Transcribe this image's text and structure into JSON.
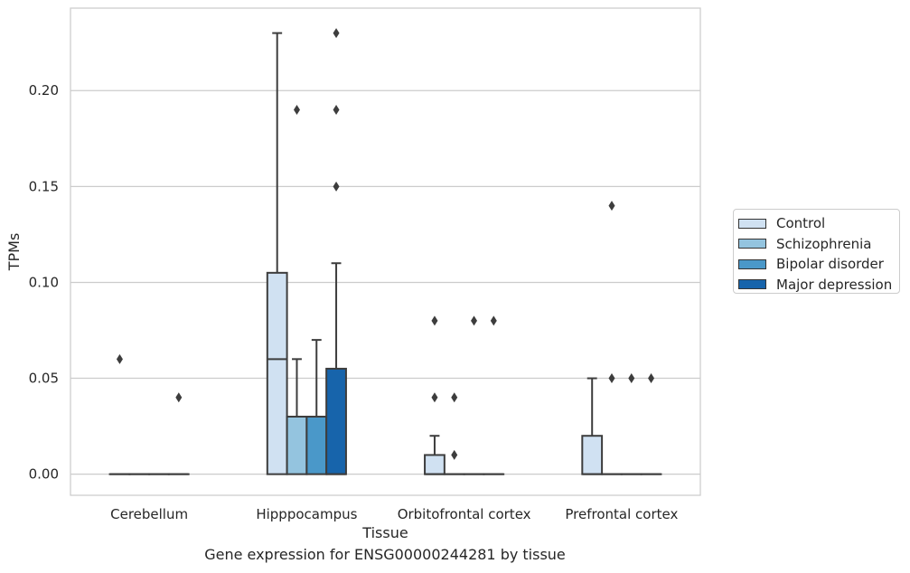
{
  "chart_data": {
    "type": "box",
    "title": "Gene expression for ENSG00000244281 by tissue",
    "xlabel": "Tissue",
    "ylabel": "TPMs",
    "categories": [
      "Cerebellum",
      "Hipppocampus",
      "Orbitofrontal cortex",
      "Prefrontal cortex"
    ],
    "ylim": [
      -0.011,
      0.243
    ],
    "yticks": [
      "0.00",
      "0.05",
      "0.10",
      "0.15",
      "0.20"
    ],
    "grid": "horizontal",
    "legend_position": "right",
    "series": [
      {
        "name": "Control",
        "color": "#d0e1f2",
        "boxes": [
          {
            "min": 0,
            "q1": 0,
            "median": 0,
            "q3": 0,
            "max": 0,
            "outliers": [
              0.06
            ]
          },
          {
            "min": 0,
            "q1": 0,
            "median": 0.06,
            "q3": 0.105,
            "max": 0.23,
            "outliers": []
          },
          {
            "min": 0,
            "q1": 0,
            "median": 0,
            "q3": 0.01,
            "max": 0.02,
            "outliers": [
              0.08,
              0.04
            ]
          },
          {
            "min": 0,
            "q1": 0,
            "median": 0,
            "q3": 0.02,
            "max": 0.05,
            "outliers": []
          }
        ]
      },
      {
        "name": "Schizophrenia",
        "color": "#94c4df",
        "boxes": [
          {
            "min": 0,
            "q1": 0,
            "median": 0,
            "q3": 0,
            "max": 0,
            "outliers": []
          },
          {
            "min": 0,
            "q1": 0,
            "median": 0.03,
            "q3": 0.03,
            "max": 0.06,
            "outliers": [
              0.19
            ]
          },
          {
            "min": 0,
            "q1": 0,
            "median": 0,
            "q3": 0,
            "max": 0,
            "outliers": [
              0.04,
              0.01
            ]
          },
          {
            "min": 0,
            "q1": 0,
            "median": 0,
            "q3": 0,
            "max": 0,
            "outliers": [
              0.14,
              0.05
            ]
          }
        ]
      },
      {
        "name": "Bipolar disorder",
        "color": "#4a98c9",
        "boxes": [
          {
            "min": 0,
            "q1": 0,
            "median": 0,
            "q3": 0,
            "max": 0,
            "outliers": []
          },
          {
            "min": 0,
            "q1": 0,
            "median": 0.03,
            "q3": 0.03,
            "max": 0.07,
            "outliers": []
          },
          {
            "min": 0,
            "q1": 0,
            "median": 0,
            "q3": 0,
            "max": 0,
            "outliers": [
              0.08
            ]
          },
          {
            "min": 0,
            "q1": 0,
            "median": 0,
            "q3": 0,
            "max": 0,
            "outliers": [
              0.05
            ]
          }
        ]
      },
      {
        "name": "Major depression",
        "color": "#1764ab",
        "boxes": [
          {
            "min": 0,
            "q1": 0,
            "median": 0,
            "q3": 0,
            "max": 0,
            "outliers": [
              0.04
            ]
          },
          {
            "min": 0,
            "q1": 0,
            "median": 0,
            "q3": 0.055,
            "max": 0.11,
            "outliers": [
              0.23,
              0.19,
              0.15
            ]
          },
          {
            "min": 0,
            "q1": 0,
            "median": 0,
            "q3": 0,
            "max": 0,
            "outliers": [
              0.08
            ]
          },
          {
            "min": 0,
            "q1": 0,
            "median": 0,
            "q3": 0,
            "max": 0,
            "outliers": [
              0.05
            ]
          }
        ]
      }
    ]
  }
}
